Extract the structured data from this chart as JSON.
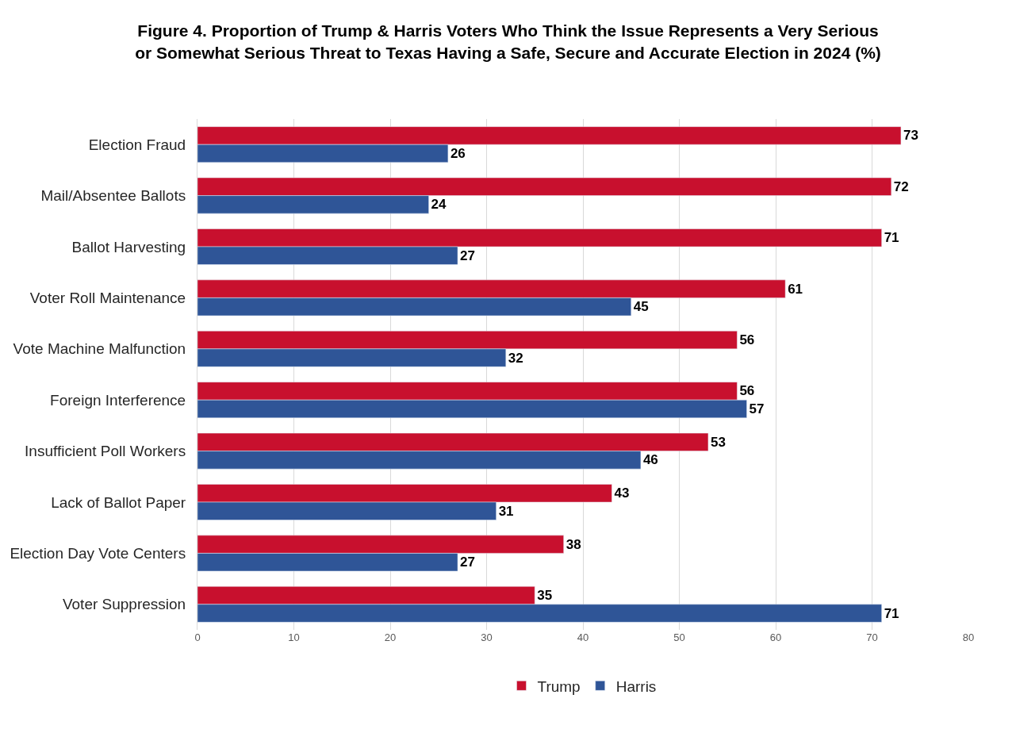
{
  "chart_data": {
    "type": "bar",
    "orientation": "horizontal",
    "title": "Figure 4. Proportion of Trump & Harris Voters Who Think the Issue Represents a Very Serious\nor Somewhat Serious Threat to Texas Having a Safe, Secure and Accurate Election in 2024 (%)",
    "categories": [
      "Election Fraud",
      "Mail/Absentee Ballots",
      "Ballot Harvesting",
      "Voter Roll Maintenance",
      "Vote Machine Malfunction",
      "Foreign Interference",
      "Insufficient Poll Workers",
      "Lack of Ballot Paper",
      "Election Day Vote Centers",
      "Voter Suppression"
    ],
    "series": [
      {
        "name": "Trump",
        "color": "#c8102e",
        "values": [
          73,
          72,
          71,
          61,
          56,
          56,
          53,
          43,
          38,
          35
        ]
      },
      {
        "name": "Harris",
        "color": "#2f5597",
        "values": [
          26,
          24,
          27,
          45,
          32,
          57,
          46,
          31,
          27,
          71
        ]
      }
    ],
    "xlim": [
      0,
      80
    ],
    "xticks": [
      0,
      10,
      20,
      30,
      40,
      50,
      60,
      70,
      80
    ],
    "grid": "x",
    "legend": "bottom",
    "data_labels": true
  }
}
